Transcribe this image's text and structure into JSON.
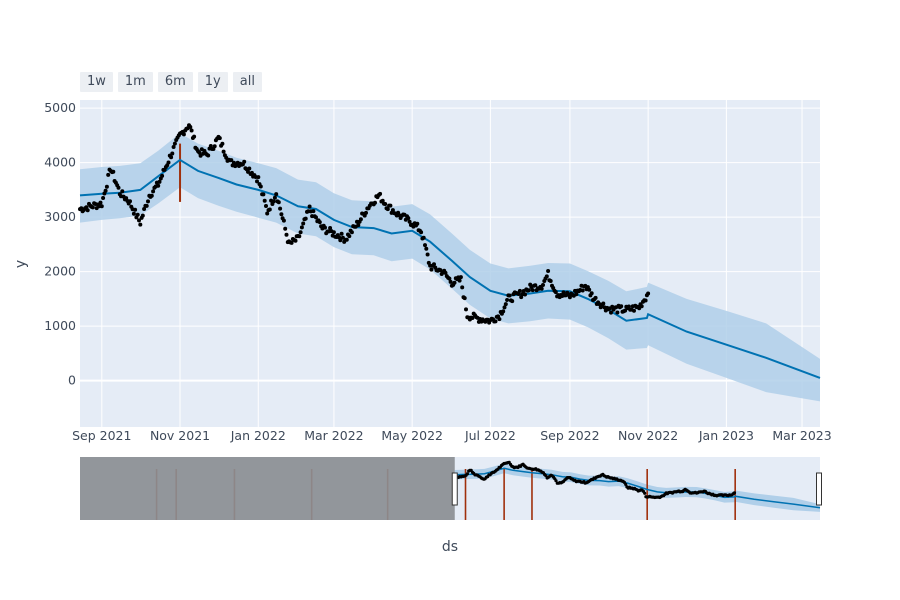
{
  "range_buttons": [
    "1w",
    "1m",
    "6m",
    "1y",
    "all"
  ],
  "colors": {
    "plot_bg": "#e5ecf6",
    "grid": "#ffffff",
    "band": "#b0cfe9",
    "trend": "#0072b2",
    "points": "#000000",
    "changepoint": "#a0300c",
    "rangeslider_bg": "#e5ecf6",
    "rangeslider_mask": "#8b8e93"
  },
  "chart_data": {
    "type": "line",
    "xlabel": "ds",
    "ylabel": "y",
    "main_xlim": [
      "2021-08-15",
      "2023-03-15"
    ],
    "ylim": [
      -850,
      5150
    ],
    "y_ticks": [
      0,
      1000,
      2000,
      3000,
      4000,
      5000
    ],
    "x_ticks": [
      {
        "date": "2021-09-01",
        "label": "Sep 2021"
      },
      {
        "date": "2021-11-01",
        "label": "Nov 2021"
      },
      {
        "date": "2022-01-01",
        "label": "Jan 2022"
      },
      {
        "date": "2022-03-01",
        "label": "Mar 2022"
      },
      {
        "date": "2022-05-01",
        "label": "May 2022"
      },
      {
        "date": "2022-07-01",
        "label": "Jul 2022"
      },
      {
        "date": "2022-09-01",
        "label": "Sep 2022"
      },
      {
        "date": "2022-11-01",
        "label": "Nov 2022"
      },
      {
        "date": "2023-01-01",
        "label": "Jan 2023"
      },
      {
        "date": "2023-03-01",
        "label": "Mar 2023"
      }
    ],
    "series": [
      {
        "role": "forecast",
        "x": [
          "2021-08-15",
          "2021-09-01",
          "2021-09-15",
          "2021-10-01",
          "2021-10-15",
          "2021-11-01",
          "2021-11-15",
          "2021-12-01",
          "2021-12-15",
          "2022-01-01",
          "2022-01-15",
          "2022-02-01",
          "2022-02-15",
          "2022-03-01",
          "2022-03-15",
          "2022-04-01",
          "2022-04-15",
          "2022-05-01",
          "2022-05-15",
          "2022-06-01",
          "2022-06-15",
          "2022-07-01",
          "2022-07-15",
          "2022-08-01",
          "2022-08-15",
          "2022-09-01",
          "2022-09-15",
          "2022-10-01",
          "2022-10-15",
          "2022-10-31",
          "2022-11-01",
          "2022-12-01",
          "2023-01-01",
          "2023-02-01",
          "2023-03-15"
        ],
        "yhat": [
          3400,
          3430,
          3450,
          3500,
          3750,
          4050,
          3850,
          3720,
          3600,
          3500,
          3400,
          3200,
          3150,
          2950,
          2820,
          2800,
          2700,
          2750,
          2550,
          2200,
          1900,
          1650,
          1560,
          1600,
          1650,
          1640,
          1500,
          1300,
          1100,
          1150,
          1220,
          900,
          660,
          420,
          50
        ],
        "yhat_lower": [
          2900,
          2950,
          2980,
          3030,
          3250,
          3550,
          3350,
          3210,
          3100,
          2990,
          2900,
          2700,
          2650,
          2450,
          2320,
          2300,
          2190,
          2240,
          2040,
          1690,
          1390,
          1140,
          1050,
          1090,
          1140,
          1120,
          980,
          780,
          570,
          600,
          650,
          310,
          50,
          -210,
          -380
        ],
        "yhat_upper": [
          3880,
          3920,
          3940,
          3990,
          4220,
          4540,
          4350,
          4220,
          4090,
          3990,
          3900,
          3690,
          3640,
          3440,
          3310,
          3290,
          3190,
          3240,
          3050,
          2700,
          2400,
          2150,
          2060,
          2110,
          2160,
          2150,
          2010,
          1830,
          1640,
          1720,
          1800,
          1500,
          1280,
          1050,
          400
        ]
      },
      {
        "role": "observed",
        "anchors": [
          [
            "2021-08-15",
            3150
          ],
          [
            "2021-09-01",
            3250
          ],
          [
            "2021-09-08",
            3900
          ],
          [
            "2021-09-15",
            3450
          ],
          [
            "2021-09-22",
            3300
          ],
          [
            "2021-10-01",
            2900
          ],
          [
            "2021-10-08",
            3400
          ],
          [
            "2021-10-15",
            3600
          ],
          [
            "2021-10-25",
            4150
          ],
          [
            "2021-11-01",
            4500
          ],
          [
            "2021-11-08",
            4700
          ],
          [
            "2021-11-15",
            4200
          ],
          [
            "2021-11-22",
            4150
          ],
          [
            "2021-12-01",
            4450
          ],
          [
            "2021-12-10",
            4000
          ],
          [
            "2021-12-20",
            4000
          ],
          [
            "2022-01-01",
            3700
          ],
          [
            "2022-01-08",
            3100
          ],
          [
            "2022-01-15",
            3450
          ],
          [
            "2022-01-25",
            2500
          ],
          [
            "2022-02-01",
            2600
          ],
          [
            "2022-02-10",
            3150
          ],
          [
            "2022-02-20",
            2800
          ],
          [
            "2022-03-01",
            2700
          ],
          [
            "2022-03-10",
            2600
          ],
          [
            "2022-03-20",
            2900
          ],
          [
            "2022-03-28",
            3200
          ],
          [
            "2022-04-05",
            3400
          ],
          [
            "2022-04-12",
            3200
          ],
          [
            "2022-04-20",
            3050
          ],
          [
            "2022-05-01",
            2900
          ],
          [
            "2022-05-08",
            2750
          ],
          [
            "2022-05-15",
            2100
          ],
          [
            "2022-05-25",
            2000
          ],
          [
            "2022-06-01",
            1800
          ],
          [
            "2022-06-08",
            1850
          ],
          [
            "2022-06-13",
            1200
          ],
          [
            "2022-06-20",
            1150
          ],
          [
            "2022-07-01",
            1100
          ],
          [
            "2022-07-08",
            1200
          ],
          [
            "2022-07-15",
            1500
          ],
          [
            "2022-07-25",
            1600
          ],
          [
            "2022-08-01",
            1700
          ],
          [
            "2022-08-10",
            1750
          ],
          [
            "2022-08-15",
            1950
          ],
          [
            "2022-08-22",
            1600
          ],
          [
            "2022-09-01",
            1550
          ],
          [
            "2022-09-08",
            1650
          ],
          [
            "2022-09-13",
            1750
          ],
          [
            "2022-09-20",
            1500
          ],
          [
            "2022-10-01",
            1320
          ],
          [
            "2022-10-15",
            1300
          ],
          [
            "2022-10-25",
            1350
          ],
          [
            "2022-11-01",
            1600
          ]
        ]
      }
    ],
    "changepoints": [
      {
        "date": "2021-11-01",
        "y0": 3280,
        "y1": 4350
      }
    ],
    "rangeslider": {
      "xlim": [
        "2020-01-01",
        "2023-03-15"
      ],
      "ylim": [
        -1200,
        5200
      ],
      "selected": [
        "2021-08-15",
        "2023-03-15"
      ],
      "changepoints": [
        "2020-05-01",
        "2020-06-01",
        "2020-09-01",
        "2021-01-01",
        "2021-05-01",
        "2021-09-01",
        "2021-11-01",
        "2021-12-15",
        "2022-06-15",
        "2022-11-01"
      ]
    }
  }
}
